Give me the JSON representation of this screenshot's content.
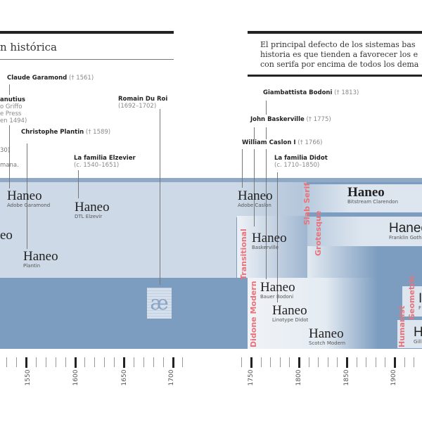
{
  "left_page": {
    "section_title": "n histórica",
    "people": [
      {
        "name": "Claude Garamond",
        "note": "(† 1561)"
      },
      {
        "name": "anutius",
        "lines": [
          "o Griffo",
          "e Press",
          "en 1494)"
        ]
      },
      {
        "name": "Christophe Plantin",
        "note": "(† 1589)"
      },
      {
        "name": "Romain Du Roi",
        "note": "(1692–1702)"
      },
      {
        "name": "La familia Elzevier",
        "note": "(c. 1540–1651)"
      },
      {
        "fragment1": "30)",
        "fragment2": "mana."
      }
    ]
  },
  "right_page": {
    "quote": [
      "El principal defecto de los sistemas bas",
      "historia es que tienden a favorecer los e",
      "con serifa por encima de todos los dema"
    ],
    "people": [
      {
        "name": "Giambattista Bodoni",
        "note": "(† 1813)"
      },
      {
        "name": "John Baskerville",
        "note": "(† 1775)"
      },
      {
        "name": "William Caslon I",
        "note": "(† 1766)"
      },
      {
        "name": "La familia Didot",
        "note": "(c. 1710–1850)"
      }
    ]
  },
  "specimens": [
    {
      "sample": "Haneo",
      "font": "Adobe Garamond"
    },
    {
      "sample": "Haneo",
      "font": "DTL Elzevir"
    },
    {
      "sample": "Haneo",
      "font": "Plantin"
    },
    {
      "sample": "eo",
      "font": ""
    },
    {
      "sample": "Haneo",
      "font": "Adobe Caslon"
    },
    {
      "sample": "Haneo",
      "font": "Baskerville"
    },
    {
      "sample": "Haneo",
      "font": "Bauer Bodoni"
    },
    {
      "sample": "Haneo",
      "font": "Linotype Didot"
    },
    {
      "sample": "Haneo",
      "font": "Scotch Modern"
    },
    {
      "sample": "Haneo",
      "font": "Bitstream Clarendon"
    },
    {
      "sample": "Haneo",
      "font": "Franklin Goth"
    },
    {
      "sample": "H",
      "font": "Gill"
    },
    {
      "sample": "I",
      "font": "F"
    }
  ],
  "categories": [
    "Transitional",
    "Slab Serif",
    "Grotesque",
    "Didone Modern",
    "Humanist",
    "Geometric"
  ],
  "romain_du_roi_glyph": "æ",
  "timeline": {
    "years": [
      "1550",
      "1600",
      "1650",
      "1700",
      "1750",
      "1800",
      "1850",
      "1900"
    ]
  },
  "colors": {
    "band_dark": "#7d9dc0",
    "band_light": "#cdd9e6",
    "category": "#e8737a"
  }
}
